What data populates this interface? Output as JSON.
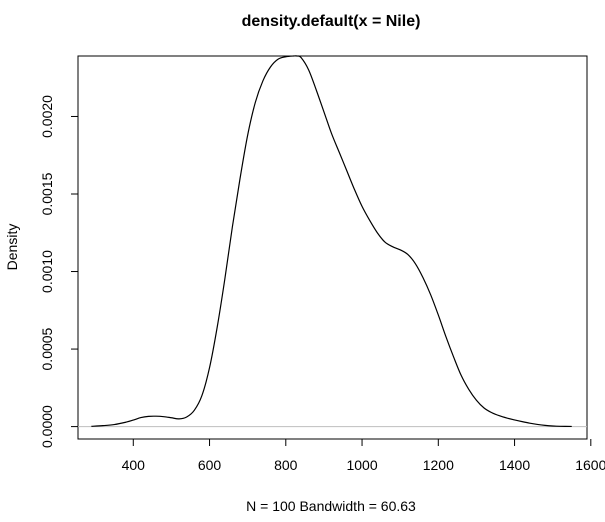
{
  "chart_data": {
    "type": "line",
    "title": "density.default(x = Nile)",
    "xlabel": "N = 100   Bandwidth = 60.63",
    "ylabel": "Density",
    "xlim": [
      255,
      1590
    ],
    "ylim": [
      -8e-05,
      0.00239
    ],
    "x_ticks": [
      400,
      600,
      800,
      1000,
      1200,
      1400,
      1600
    ],
    "x_tick_labels": [
      "400",
      "600",
      "800",
      "1000",
      "1200",
      "1400",
      "1600"
    ],
    "y_ticks": [
      0,
      0.0005,
      0.001,
      0.0015,
      0.002
    ],
    "y_tick_labels": [
      "0.0000",
      "0.0005",
      "0.0010",
      "0.0015",
      "0.0020"
    ],
    "baseline_y": 0,
    "grid": false,
    "line_color": "#000000",
    "baseline_color": "#bebebe",
    "series": [
      {
        "values_x": [
          290,
          320,
          350,
          380,
          400,
          420,
          440,
          460,
          480,
          500,
          520,
          540,
          560,
          580,
          600,
          620,
          640,
          660,
          680,
          700,
          720,
          740,
          760,
          780,
          800,
          820,
          830,
          840,
          860,
          880,
          900,
          920,
          940,
          960,
          980,
          1000,
          1020,
          1040,
          1060,
          1080,
          1100,
          1120,
          1140,
          1160,
          1180,
          1200,
          1220,
          1240,
          1260,
          1280,
          1300,
          1320,
          1340,
          1360,
          1380,
          1400,
          1420,
          1440,
          1460,
          1480,
          1500,
          1520,
          1550
        ],
        "values_y": [
          2e-06,
          6e-06,
          1.3e-05,
          2.8e-05,
          4.2e-05,
          5.8e-05,
          6.6e-05,
          6.7e-05,
          6.4e-05,
          5.7e-05,
          5e-05,
          6.2e-05,
          0.000105,
          0.0002,
          0.00038,
          0.00064,
          0.00095,
          0.00129,
          0.0016,
          0.00188,
          0.00209,
          0.00223,
          0.00232,
          0.00237,
          0.002385,
          0.00239,
          0.00239,
          0.00238,
          0.0023,
          0.00217,
          0.00203,
          0.00189,
          0.00177,
          0.00165,
          0.00153,
          0.00142,
          0.00133,
          0.00125,
          0.00119,
          0.00116,
          0.00114,
          0.00111,
          0.00105,
          0.00096,
          0.00085,
          0.00072,
          0.00058,
          0.00045,
          0.00033,
          0.00024,
          0.00017,
          0.00012,
          9e-05,
          7e-05,
          5.5e-05,
          4.3e-05,
          3.2e-05,
          2.2e-05,
          1.4e-05,
          8e-06,
          4e-06,
          2e-06,
          1e-06
        ]
      }
    ]
  }
}
